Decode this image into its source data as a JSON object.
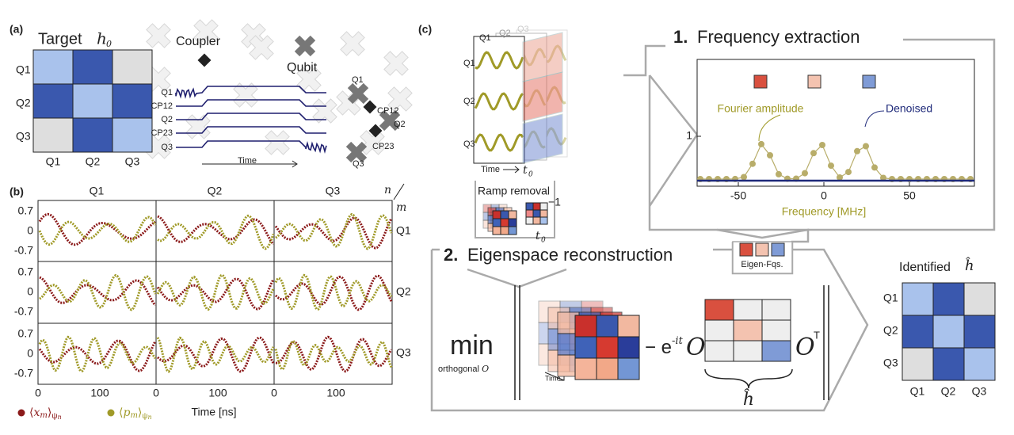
{
  "panel_a": {
    "label": "(a)",
    "title": "Target",
    "symbol": "h",
    "symbol_sub": "0",
    "rows": [
      "Q1",
      "Q2",
      "Q3"
    ],
    "cols": [
      "Q1",
      "Q2",
      "Q3"
    ],
    "coupler": "Coupler",
    "qubit": "Qubit",
    "pulse_labels": [
      "Q1",
      "CP12",
      "Q2",
      "CP23",
      "Q3"
    ],
    "time": "Time",
    "chip_labels": [
      "Q1",
      "CP12",
      "Q2",
      "CP23",
      "Q3"
    ]
  },
  "panel_b": {
    "label": "(b)",
    "col_titles": [
      "Q1",
      "Q2",
      "Q3"
    ],
    "n": "n",
    "m": "m",
    "row_labels": [
      "Q1",
      "Q2",
      "Q3"
    ],
    "yticks": [
      "0.7",
      "0",
      "-0.7"
    ],
    "xticks": [
      "0",
      "100"
    ],
    "xlabel": "Time [ns]",
    "legend": [
      {
        "open": "⟨",
        "var": "x",
        "sub": "m",
        "close": "⟩",
        "psi": "ψ",
        "psi_sub": "n"
      },
      {
        "open": "⟨",
        "var": "p",
        "sub": "m",
        "close": "⟩",
        "psi": "ψ",
        "psi_sub": "n"
      }
    ]
  },
  "panel_c": {
    "label": "(c)",
    "stack_cols": [
      "Q1",
      "Q2",
      "Q3"
    ],
    "stack_rows": [
      "Q1",
      "Q2",
      "Q3"
    ],
    "time": "Time",
    "t": "t",
    "t_sub": "0",
    "ramp": "Ramp removal",
    "inverse": "−1",
    "step1_num": "1.",
    "step1": "Frequency extraction",
    "fourier": "Fourier amplitude",
    "denoised": "Denoised",
    "spec_yticks": [
      "1"
    ],
    "spec_xticks": [
      "-50",
      "0",
      "50"
    ],
    "spec_xlabel": "Frequency [MHz]",
    "eigen": "Eigen-Fqs.",
    "step2_num": "2.",
    "step2": "Eigenspace reconstruction",
    "min": "min",
    "orth": "orthogonal",
    "orth_sym": "O",
    "minus_e": "− e",
    "exponent": "-it",
    "O": "O",
    "OT": "O",
    "T": "T",
    "hhat": "ĥ",
    "stack_time": "Time",
    "identified": "Identified",
    "id_sym": "ĥ",
    "id_rows": [
      "Q1",
      "Q2",
      "Q3"
    ],
    "id_cols": [
      "Q1",
      "Q2",
      "Q3"
    ]
  }
}
